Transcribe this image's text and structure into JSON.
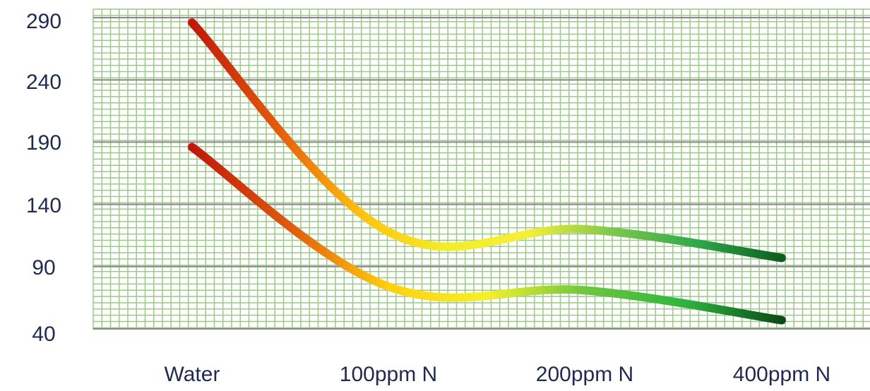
{
  "chart_data": {
    "type": "line",
    "categories": [
      "Water",
      "100ppm N",
      "200ppm N",
      "400ppm N"
    ],
    "y_ticks": [
      "40",
      "90",
      "140",
      "190",
      "240",
      "290"
    ],
    "ylim": [
      40,
      290
    ],
    "grid": true,
    "series": [
      {
        "points": [
          {
            "x": "Water",
            "y": 286
          },
          {
            "x": "100ppm N",
            "y": 118
          },
          {
            "x": "200ppm N",
            "y": 120
          },
          {
            "x": "400ppm N",
            "y": 97
          }
        ],
        "gradient": [
          "#c0180c",
          "#e25a0c",
          "#ffc20e",
          "#f3ee28",
          "#f4ef3a",
          "#7cc74c",
          "#2ea84a",
          "#0d5e1f"
        ]
      },
      {
        "points": [
          {
            "x": "Water",
            "y": 186
          },
          {
            "x": "100ppm N",
            "y": 74
          },
          {
            "x": "200ppm N",
            "y": 71
          },
          {
            "x": "400ppm N",
            "y": 47
          }
        ],
        "gradient": [
          "#c0180c",
          "#e05a0c",
          "#ffd00e",
          "#f5f02a",
          "#6dc63e",
          "#2eb63e",
          "#0a4c18"
        ]
      }
    ],
    "colors": {
      "minor_grid": "#9cc888",
      "major_grid": "#888888",
      "label_text": "#1f2a52"
    }
  }
}
